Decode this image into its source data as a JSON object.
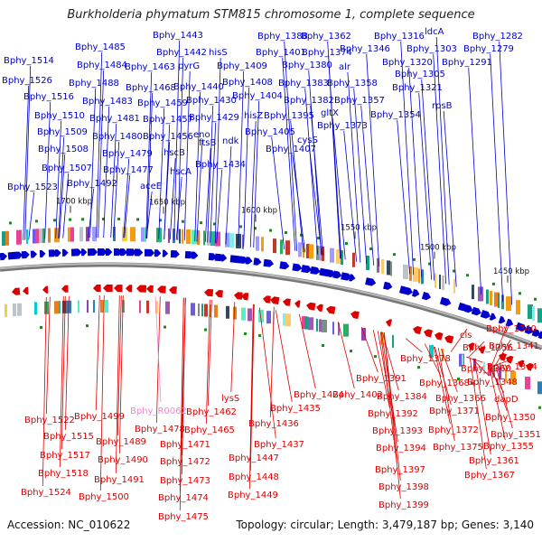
{
  "title": "Burkholderia phymatum STM815 chromosome 1, complete sequence",
  "footer": {
    "accession": "Accession: NC_010622",
    "summary": "Topology: circular; Length: 3,479,187 bp; Genes: 3,140"
  },
  "colors": {
    "forward": "#0000cc",
    "reverse": "#dd0000",
    "rna": "#ee88cc",
    "backbone": "#888888"
  },
  "ticks": [
    "1450 kbp",
    "1500 kbp",
    "1550 kbp",
    "1600 kbp",
    "1650 kbp",
    "1700 kbp"
  ],
  "forward_genes": [
    "Bphy_1443",
    "Bphy_1388",
    "Bphy_1362",
    "Bphy_1316",
    "ldcA",
    "Bphy_1282",
    "Bphy_1485",
    "Bphy_1442",
    "hisS",
    "Bphy_1401",
    "Bphy_1374",
    "Bphy_1346",
    "Bphy_1303",
    "Bphy_1279",
    "Bphy_1514",
    "Bphy_1484",
    "Bphy_1463",
    "pyrG",
    "Bphy_1409",
    "Bphy_1380",
    "alr",
    "Bphy_1320",
    "Bphy_1291",
    "Bphy_1526",
    "Bphy_1488",
    "Bphy_1468",
    "Bphy_1440",
    "Bphy_1408",
    "Bphy_1383",
    "Bphy_1358",
    "Bphy_1305",
    "Bphy_1516",
    "Bphy_1483",
    "Bphy_1459",
    "Bphy_1430",
    "Bphy_1404",
    "Bphy_1382",
    "Bphy_1357",
    "Bphy_1321",
    "Bphy_1510",
    "Bphy_1481",
    "Bphy_1457",
    "Bphy_1429",
    "hisZ",
    "Bphy_1395",
    "gltX",
    "Bphy_1354",
    "rpsB",
    "Bphy_1509",
    "Bphy_1480",
    "Bphy_1456",
    "eno",
    "Bphy_1405",
    "cysS",
    "Bphy_1373",
    "Bphy_1508",
    "Bphy_1479",
    "hscB",
    "ftsB",
    "ndk",
    "Bphy_1407",
    "Bphy_1507",
    "Bphy_1477",
    "hscA",
    "Bphy_1434",
    "Bphy_1523",
    "Bphy_1492",
    "aceE"
  ],
  "reverse_genes": [
    "Bphy_1340",
    "cls",
    "Bphy_1341",
    "Bphy_1378",
    "Bphy_1356",
    "Bphy_1360",
    "Bphy_1344",
    "Bphy_1391",
    "Bphy_1368",
    "Bphy_1348",
    "Bphy_1424",
    "Bphy_1402",
    "Bphy_1384",
    "Bphy_1366",
    "dapD",
    "Bphy_1522",
    "Bphy_1499",
    "lysS",
    "Bphy_1435",
    "Bphy_1392",
    "Bphy_1371",
    "Bphy_1350",
    "Bphy_1462",
    "Bphy_1436",
    "Bphy_1393",
    "Bphy_1372",
    "Bphy_1351",
    "Bphy_1478",
    "Bphy_1465",
    "Bphy_1515",
    "Bphy_1489",
    "Bphy_1471",
    "Bphy_1437",
    "Bphy_1394",
    "Bphy_1375",
    "Bphy_1355",
    "Bphy_1517",
    "Bphy_1490",
    "Bphy_1472",
    "Bphy_1447",
    "Bphy_1361",
    "Bphy_1518",
    "Bphy_1491",
    "Bphy_1473",
    "Bphy_1448",
    "Bphy_1397",
    "Bphy_1367",
    "Bphy_1524",
    "Bphy_1500",
    "Bphy_1474",
    "Bphy_1449",
    "Bphy_1398",
    "Bphy_1475",
    "Bphy_1399"
  ],
  "rna_genes": [
    "Bphy_R0062"
  ]
}
